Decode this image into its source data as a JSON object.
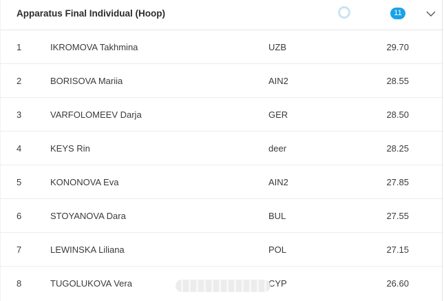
{
  "header": {
    "title": "Apparatus Final Individual (Hoop)",
    "count": "11",
    "loader_icon": "loading-ring-icon",
    "expand_icon": "chevron-down-icon"
  },
  "colors": {
    "badge": "#1aa3e8",
    "loader": "#c9e4f2",
    "divider": "#ececec"
  },
  "results": [
    {
      "rank": "1",
      "name": "IKROMOVA Takhmina",
      "nation": "UZB",
      "score": "29.70"
    },
    {
      "rank": "2",
      "name": "BORISOVA Mariia",
      "nation": "AIN2",
      "score": "28.55"
    },
    {
      "rank": "3",
      "name": "VARFOLOMEEV Darja",
      "nation": "GER",
      "score": "28.50"
    },
    {
      "rank": "4",
      "name": "KEYS Rin",
      "nation": "deer",
      "score": "28.25"
    },
    {
      "rank": "5",
      "name": "KONONOVA Eva",
      "nation": "AIN2",
      "score": "27.85"
    },
    {
      "rank": "6",
      "name": "STOYANOVA Dara",
      "nation": "BUL",
      "score": "27.55"
    },
    {
      "rank": "7",
      "name": "LEWINSKA Liliana",
      "nation": "POL",
      "score": "27.15"
    },
    {
      "rank": "8",
      "name": "TUGOLUKOVA Vera",
      "nation": "CYP",
      "score": "26.60"
    }
  ]
}
